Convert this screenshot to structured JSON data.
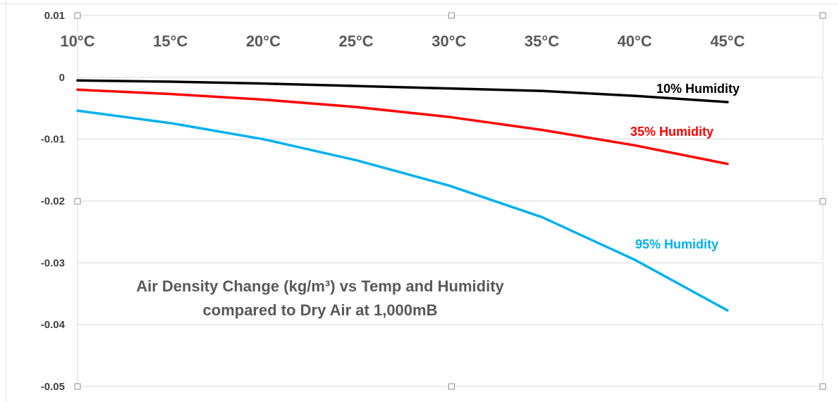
{
  "chart_data": {
    "type": "line",
    "title_lines": [
      "Air Density Change (kg/m³) vs Temp and Humidity",
      "compared to Dry Air at 1,000mB"
    ],
    "categories": [
      "10°C",
      "15°C",
      "20°C",
      "25°C",
      "30°C",
      "35°C",
      "40°C",
      "45°C"
    ],
    "ylim": [
      -0.05,
      0.01
    ],
    "yticks": [
      0.01,
      0,
      -0.01,
      -0.02,
      -0.03,
      -0.04,
      -0.05
    ],
    "ytick_labels": [
      "0.01",
      "0",
      "-0.01",
      "-0.02",
      "-0.03",
      "-0.04",
      "-0.05"
    ],
    "grid": true,
    "x_axis_position": "top",
    "series": [
      {
        "name": "10% Humidity",
        "color": "#000000",
        "values": [
          -0.0005,
          -0.0007,
          -0.001,
          -0.0014,
          -0.0018,
          -0.0022,
          -0.003,
          -0.004
        ]
      },
      {
        "name": "35% Humidity",
        "color": "#ff0000",
        "values": [
          -0.002,
          -0.0027,
          -0.0036,
          -0.0048,
          -0.0064,
          -0.0085,
          -0.011,
          -0.014
        ]
      },
      {
        "name": "95% Humidity",
        "color": "#00b0f0",
        "values": [
          -0.0054,
          -0.0074,
          -0.01,
          -0.0134,
          -0.0175,
          -0.0226,
          -0.0295,
          -0.0377
        ]
      }
    ]
  }
}
